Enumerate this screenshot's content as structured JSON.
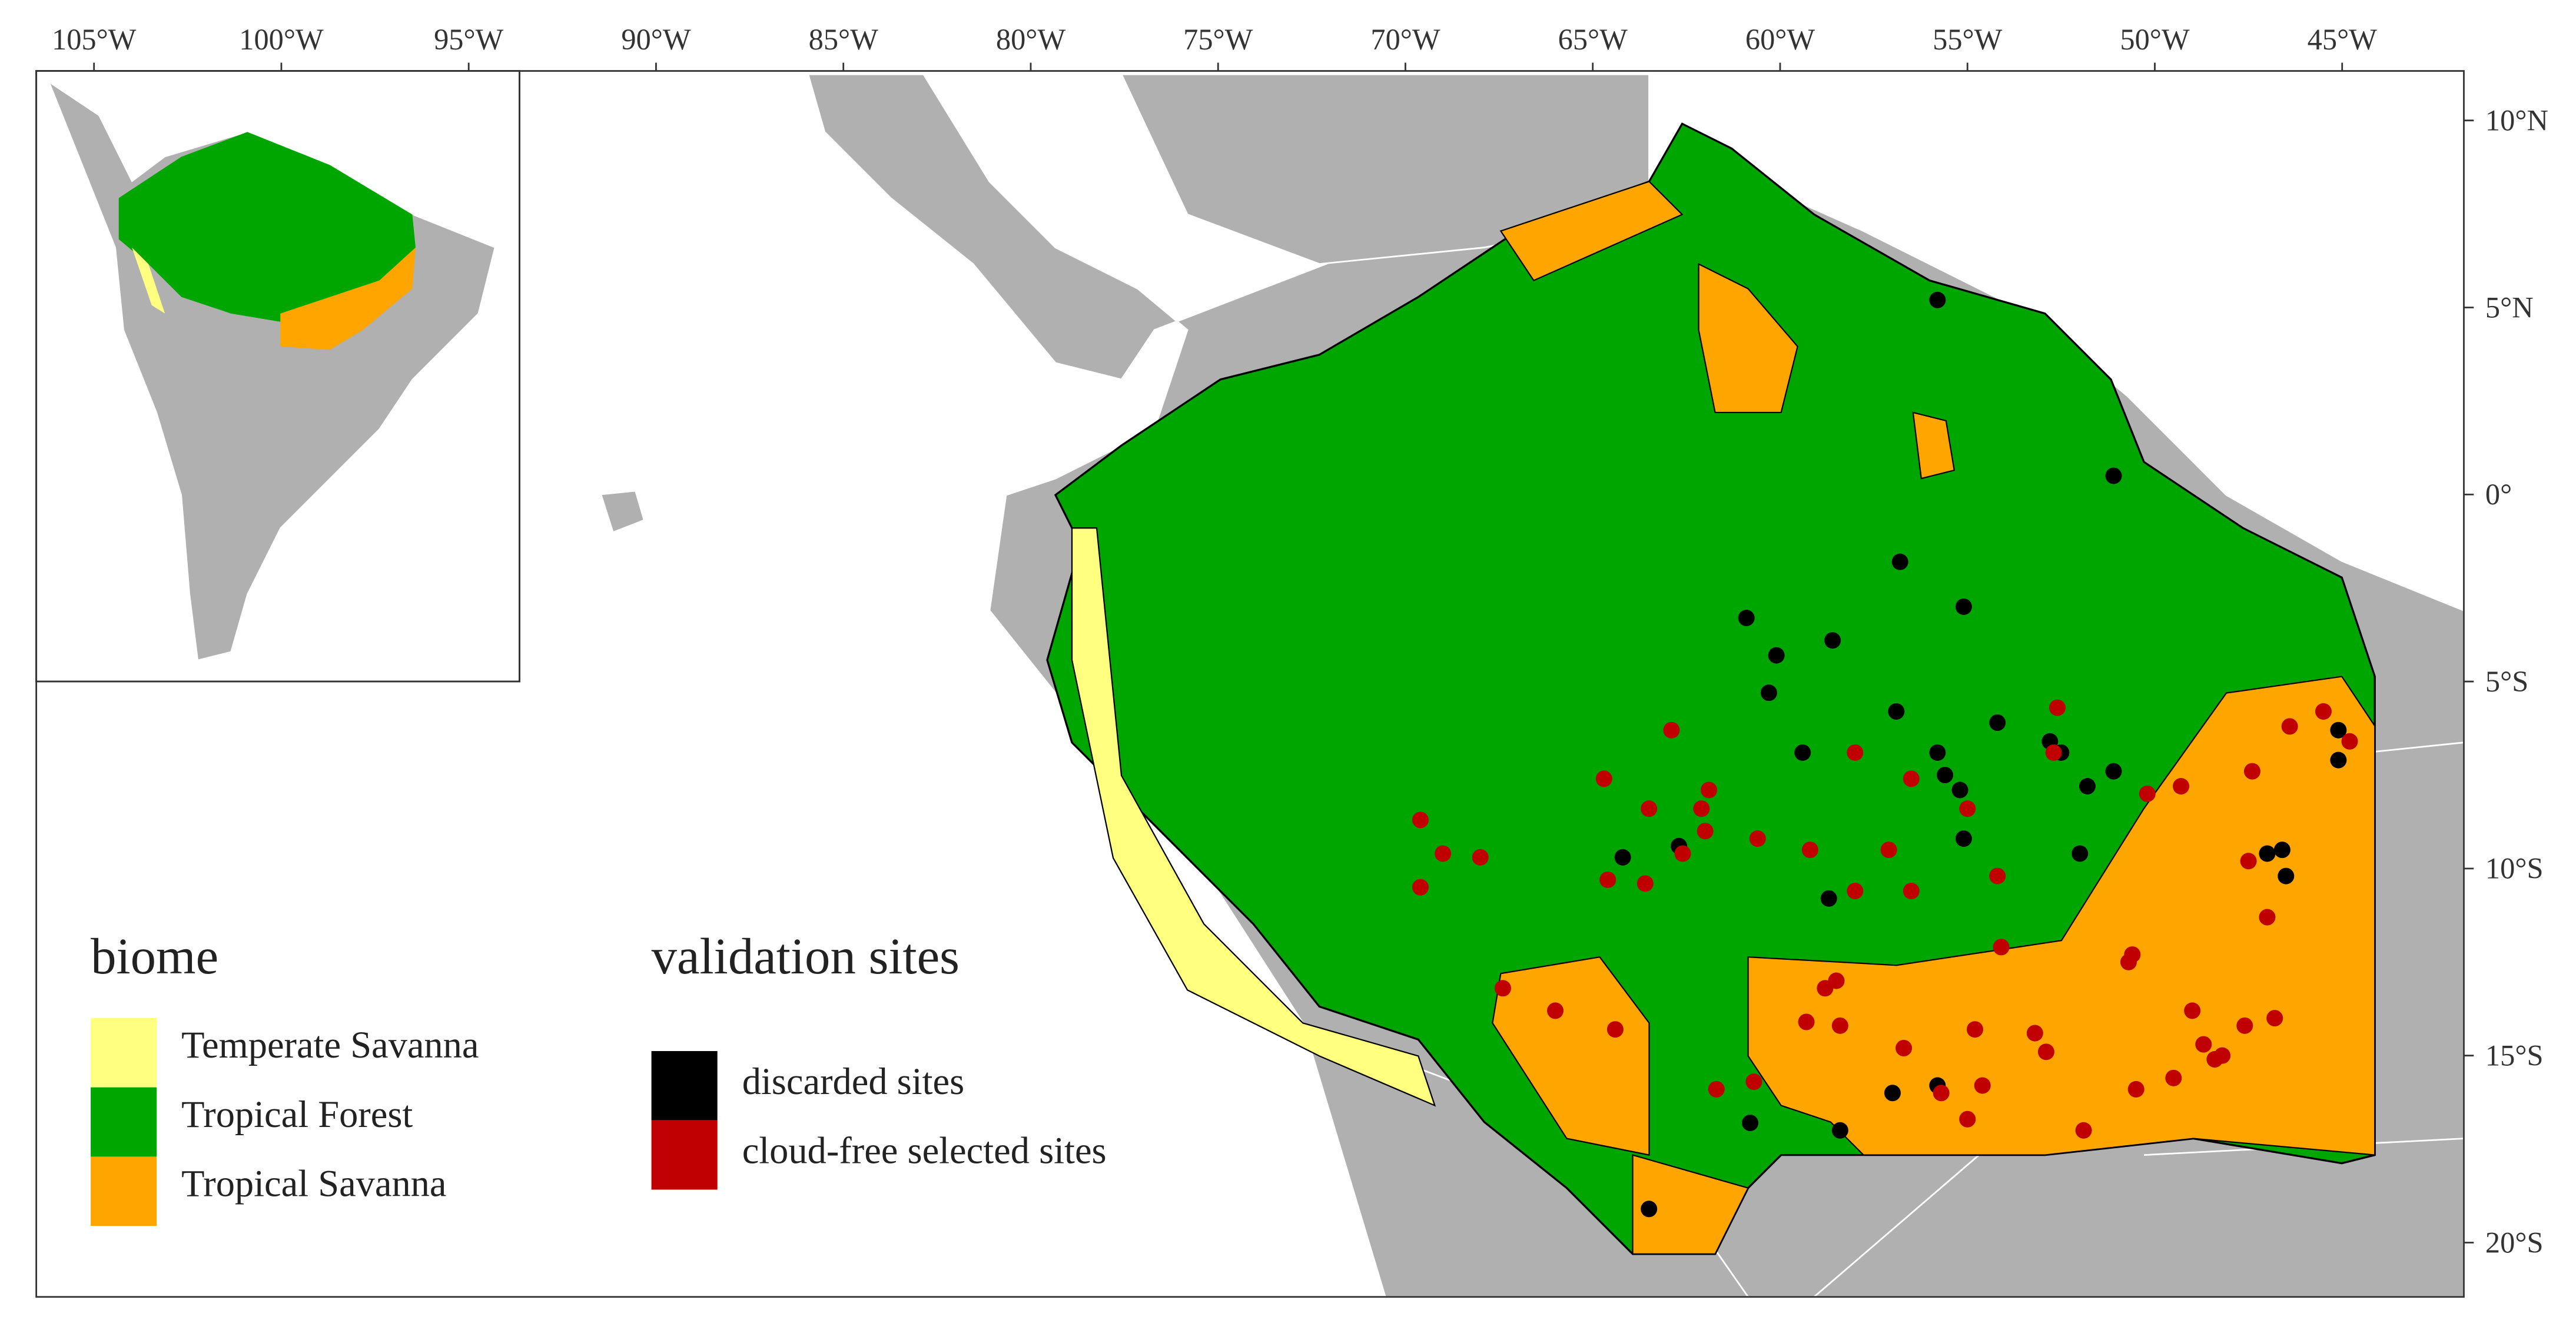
{
  "map": {
    "lon_ticks": [
      {
        "value": -105,
        "label": "105°W"
      },
      {
        "value": -100,
        "label": "100°W"
      },
      {
        "value": -95,
        "label": "95°W"
      },
      {
        "value": -90,
        "label": "90°W"
      },
      {
        "value": -85,
        "label": "85°W"
      },
      {
        "value": -80,
        "label": "80°W"
      },
      {
        "value": -75,
        "label": "75°W"
      },
      {
        "value": -70,
        "label": "70°W"
      },
      {
        "value": -65,
        "label": "65°W"
      },
      {
        "value": -60,
        "label": "60°W"
      },
      {
        "value": -55,
        "label": "55°W"
      },
      {
        "value": -50,
        "label": "50°W"
      },
      {
        "value": -45,
        "label": "45°W"
      }
    ],
    "lat_ticks": [
      {
        "value": 10,
        "label": "10°N"
      },
      {
        "value": 5,
        "label": "5°N"
      },
      {
        "value": 0,
        "label": "0°"
      },
      {
        "value": -5,
        "label": "5°S"
      },
      {
        "value": -10,
        "label": "10°S"
      },
      {
        "value": -15,
        "label": "15°S"
      },
      {
        "value": -20,
        "label": "20°S"
      }
    ],
    "biome": {
      "title": "biome",
      "items": [
        {
          "label": "Temperate Savanna",
          "color": "#ffff80"
        },
        {
          "label": "Tropical Forest",
          "color": "#00a600"
        },
        {
          "label": "Tropical Savanna",
          "color": "#ffa500"
        }
      ]
    },
    "sites": {
      "title": "validation sites",
      "series": [
        {
          "name": "discarded sites",
          "color": "#000000",
          "points": [
            [
              -55.8,
              5.2
            ],
            [
              -51.1,
              0.5
            ],
            [
              -56.8,
              -1.8
            ],
            [
              -55.1,
              -3.0
            ],
            [
              -60.9,
              -3.3
            ],
            [
              -58.6,
              -3.9
            ],
            [
              -60.1,
              -4.3
            ],
            [
              -60.3,
              -5.3
            ],
            [
              -56.9,
              -5.8
            ],
            [
              -54.2,
              -6.1
            ],
            [
              -52.8,
              -6.6
            ],
            [
              -52.5,
              -6.9
            ],
            [
              -59.4,
              -6.9
            ],
            [
              -55.8,
              -6.9
            ],
            [
              -55.6,
              -7.5
            ],
            [
              -55.2,
              -7.9
            ],
            [
              -51.8,
              -7.8
            ],
            [
              -51.1,
              -7.4
            ],
            [
              -55.1,
              -9.2
            ],
            [
              -52.0,
              -9.6
            ],
            [
              -64.2,
              -9.7
            ],
            [
              -62.7,
              -9.4
            ],
            [
              -58.7,
              -10.8
            ],
            [
              -47.0,
              -9.6
            ],
            [
              -46.6,
              -9.5
            ],
            [
              -46.5,
              -10.2
            ],
            [
              -45.1,
              -6.3
            ],
            [
              -45.1,
              -7.1
            ],
            [
              -57.0,
              -16.0
            ],
            [
              -55.8,
              -15.8
            ],
            [
              -60.8,
              -16.8
            ],
            [
              -58.4,
              -17.0
            ],
            [
              -63.5,
              -19.1
            ]
          ]
        },
        {
          "name": "cloud-free selected sites",
          "color": "#c00000",
          "points": [
            [
              -52.6,
              -5.7
            ],
            [
              -52.7,
              -6.9
            ],
            [
              -58.0,
              -6.9
            ],
            [
              -56.5,
              -7.6
            ],
            [
              -55.0,
              -8.4
            ],
            [
              -61.9,
              -7.9
            ],
            [
              -62.1,
              -8.4
            ],
            [
              -62.0,
              -9.0
            ],
            [
              -63.5,
              -8.4
            ],
            [
              -64.7,
              -7.6
            ],
            [
              -62.9,
              -6.3
            ],
            [
              -60.6,
              -9.2
            ],
            [
              -59.2,
              -9.5
            ],
            [
              -57.1,
              -9.5
            ],
            [
              -54.2,
              -10.2
            ],
            [
              -54.1,
              -12.1
            ],
            [
              -58.0,
              -10.6
            ],
            [
              -56.5,
              -10.6
            ],
            [
              -64.6,
              -10.3
            ],
            [
              -63.6,
              -10.4
            ],
            [
              -62.6,
              -9.6
            ],
            [
              -69.6,
              -8.7
            ],
            [
              -69.0,
              -9.6
            ],
            [
              -68.0,
              -9.7
            ],
            [
              -69.6,
              -10.5
            ],
            [
              -67.4,
              -13.2
            ],
            [
              -66.0,
              -13.8
            ],
            [
              -64.4,
              -14.3
            ],
            [
              -61.7,
              -15.9
            ],
            [
              -60.7,
              -15.7
            ],
            [
              -58.8,
              -13.2
            ],
            [
              -58.5,
              -13.0
            ],
            [
              -59.3,
              -14.1
            ],
            [
              -58.4,
              -14.2
            ],
            [
              -56.7,
              -14.8
            ],
            [
              -54.8,
              -14.3
            ],
            [
              -53.2,
              -14.4
            ],
            [
              -52.9,
              -14.9
            ],
            [
              -55.7,
              -16.0
            ],
            [
              -54.6,
              -15.8
            ],
            [
              -55.0,
              -16.7
            ],
            [
              -51.9,
              -17.0
            ],
            [
              -50.7,
              -12.5
            ],
            [
              -50.6,
              -12.3
            ],
            [
              -49.0,
              -13.8
            ],
            [
              -48.7,
              -14.7
            ],
            [
              -48.4,
              -15.1
            ],
            [
              -48.2,
              -15.0
            ],
            [
              -50.5,
              -15.9
            ],
            [
              -49.5,
              -15.6
            ],
            [
              -50.2,
              -8.0
            ],
            [
              -49.3,
              -7.8
            ],
            [
              -47.4,
              -7.4
            ],
            [
              -47.5,
              -9.8
            ],
            [
              -47.0,
              -11.3
            ],
            [
              -46.4,
              -6.2
            ],
            [
              -46.8,
              -14.0
            ],
            [
              -47.6,
              -14.2
            ],
            [
              -45.5,
              -5.8
            ],
            [
              -44.8,
              -6.6
            ]
          ]
        }
      ]
    }
  }
}
